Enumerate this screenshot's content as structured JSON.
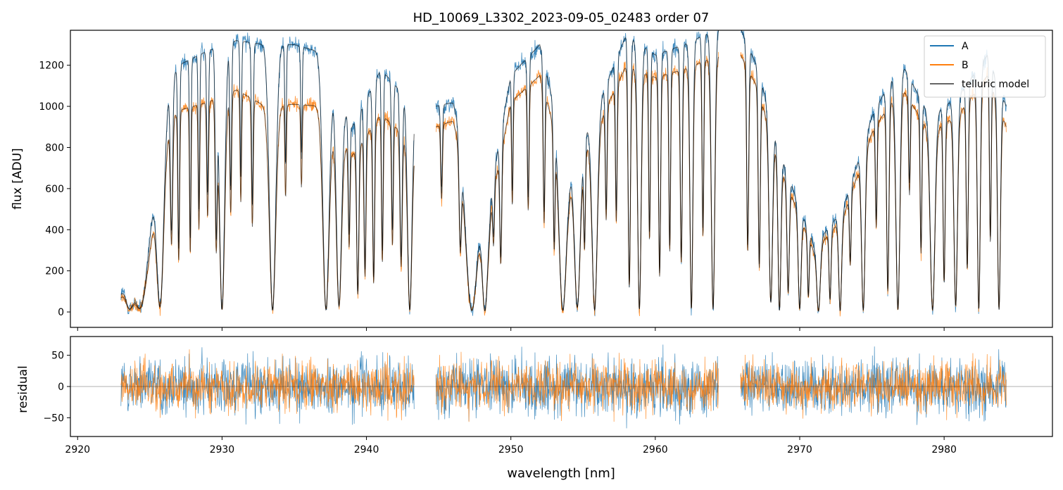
{
  "chart_data": [
    {
      "type": "line",
      "title": "HD_10069_L3302_2023-09-05_02483  order 07",
      "xlabel": "",
      "ylabel": "flux [ADU]",
      "xlim": [
        2919.5,
        2987.5
      ],
      "ylim": [
        -75,
        1370
      ],
      "yticks": [
        0,
        200,
        400,
        600,
        800,
        1000,
        1200
      ],
      "legend": {
        "position": "top-right",
        "entries": [
          "A",
          "B",
          "telluric model"
        ]
      },
      "series": [
        {
          "name": "A",
          "color": "#1f77b4"
        },
        {
          "name": "B",
          "color": "#ff7f0e"
        },
        {
          "name": "telluric model",
          "color": "#000000",
          "alpha": 0.6
        }
      ],
      "data_range": [
        2923.0,
        2984.3
      ],
      "gaps": [
        [
          2943.3,
          2944.8
        ],
        [
          2964.4,
          2965.9
        ]
      ],
      "continuum": {
        "x": [
          2923.0,
          2925.0,
          2926.0,
          2927.0,
          2929.0,
          2931.0,
          2933.0,
          2935.0,
          2937.0,
          2939.0,
          2941.0,
          2943.3,
          2944.8,
          2946.0,
          2947.0,
          2948.5,
          2950.0,
          2952.0,
          2954.0,
          2956.0,
          2958.0,
          2960.0,
          2962.0,
          2964.4,
          2965.9,
          2967.0,
          2969.0,
          2971.0,
          2973.0,
          2975.0,
          2977.0,
          2979.0,
          2981.0,
          2983.0,
          2984.3
        ],
        "A": [
          100,
          550,
          1050,
          1200,
          1270,
          1320,
          1300,
          1300,
          1260,
          900,
          1180,
          1000,
          1000,
          1020,
          800,
          550,
          1150,
          1300,
          700,
          1000,
          1350,
          1250,
          1300,
          1380,
          1380,
          1200,
          700,
          320,
          500,
          950,
          1220,
          950,
          1050,
          1250,
          1000
        ],
        "B": [
          80,
          450,
          880,
          980,
          1020,
          1080,
          1000,
          1010,
          1000,
          760,
          960,
          820,
          900,
          930,
          720,
          480,
          1020,
          1150,
          640,
          900,
          1200,
          1140,
          1180,
          1250,
          1250,
          1100,
          640,
          290,
          460,
          870,
          1100,
          870,
          960,
          1150,
          900
        ]
      },
      "absorption_lines": [
        [
          2923.6,
          0.9,
          0.3
        ],
        [
          2924.3,
          0.95,
          0.5
        ],
        [
          2925.7,
          0.97,
          0.25
        ],
        [
          2926.5,
          0.65,
          0.08
        ],
        [
          2927.0,
          0.75,
          0.06
        ],
        [
          2927.8,
          0.72,
          0.05
        ],
        [
          2928.4,
          0.6,
          0.05
        ],
        [
          2929.0,
          0.55,
          0.06
        ],
        [
          2929.6,
          0.7,
          0.07
        ],
        [
          2930.0,
          0.99,
          0.18
        ],
        [
          2930.6,
          0.55,
          0.06
        ],
        [
          2931.3,
          0.5,
          0.05
        ],
        [
          2932.1,
          0.6,
          0.06
        ],
        [
          2933.5,
          0.99,
          0.22
        ],
        [
          2934.4,
          0.45,
          0.05
        ],
        [
          2935.5,
          0.4,
          0.05
        ],
        [
          2937.2,
          0.99,
          0.22
        ],
        [
          2938.1,
          0.97,
          0.18
        ],
        [
          2938.8,
          0.6,
          0.06
        ],
        [
          2939.4,
          0.9,
          0.08
        ],
        [
          2939.9,
          0.8,
          0.07
        ],
        [
          2940.5,
          0.85,
          0.07
        ],
        [
          2941.1,
          0.75,
          0.06
        ],
        [
          2941.8,
          0.65,
          0.06
        ],
        [
          2942.4,
          0.75,
          0.08
        ],
        [
          2943.0,
          0.99,
          0.15
        ],
        [
          2945.2,
          0.4,
          0.06
        ],
        [
          2946.5,
          0.6,
          0.08
        ],
        [
          2947.3,
          0.99,
          0.4
        ],
        [
          2948.2,
          0.99,
          0.2
        ],
        [
          2948.8,
          0.45,
          0.06
        ],
        [
          2949.3,
          0.7,
          0.07
        ],
        [
          2950.1,
          0.5,
          0.05
        ],
        [
          2951.2,
          0.55,
          0.06
        ],
        [
          2952.3,
          0.6,
          0.06
        ],
        [
          2953.0,
          0.65,
          0.06
        ],
        [
          2953.6,
          0.99,
          0.25
        ],
        [
          2954.6,
          0.97,
          0.2
        ],
        [
          2955.1,
          0.6,
          0.06
        ],
        [
          2955.8,
          0.99,
          0.18
        ],
        [
          2956.6,
          0.55,
          0.06
        ],
        [
          2957.3,
          0.6,
          0.06
        ],
        [
          2958.2,
          0.9,
          0.08
        ],
        [
          2958.9,
          0.99,
          0.12
        ],
        [
          2959.6,
          0.7,
          0.06
        ],
        [
          2960.3,
          0.85,
          0.07
        ],
        [
          2961.0,
          0.75,
          0.06
        ],
        [
          2961.8,
          0.8,
          0.07
        ],
        [
          2962.5,
          0.99,
          0.1
        ],
        [
          2963.3,
          0.7,
          0.06
        ],
        [
          2964.0,
          0.99,
          0.12
        ],
        [
          2966.4,
          0.75,
          0.07
        ],
        [
          2967.2,
          0.8,
          0.07
        ],
        [
          2968.0,
          0.95,
          0.12
        ],
        [
          2968.6,
          0.99,
          0.1
        ],
        [
          2969.2,
          0.85,
          0.08
        ],
        [
          2970.0,
          0.97,
          0.1
        ],
        [
          2970.6,
          0.8,
          0.06
        ],
        [
          2971.3,
          0.99,
          0.12
        ],
        [
          2972.1,
          0.85,
          0.07
        ],
        [
          2972.8,
          0.99,
          0.1
        ],
        [
          2973.5,
          0.6,
          0.06
        ],
        [
          2974.4,
          0.99,
          0.12
        ],
        [
          2975.3,
          0.55,
          0.06
        ],
        [
          2976.1,
          0.9,
          0.08
        ],
        [
          2976.8,
          0.99,
          0.14
        ],
        [
          2977.6,
          0.45,
          0.06
        ],
        [
          2978.4,
          0.7,
          0.06
        ],
        [
          2979.2,
          0.99,
          0.16
        ],
        [
          2980.0,
          0.85,
          0.07
        ],
        [
          2980.8,
          0.97,
          0.12
        ],
        [
          2981.6,
          0.8,
          0.07
        ],
        [
          2982.4,
          0.99,
          0.1
        ],
        [
          2983.2,
          0.7,
          0.06
        ],
        [
          2983.8,
          0.99,
          0.1
        ]
      ],
      "noise": {
        "A": 20,
        "B": 16
      }
    },
    {
      "type": "line",
      "title": "",
      "xlabel": "wavelength [nm]",
      "ylabel": "residual",
      "xlim": [
        2919.5,
        2987.5
      ],
      "ylim": [
        -80,
        80
      ],
      "yticks": [
        -50,
        0,
        50
      ],
      "xticks": [
        2920,
        2930,
        2940,
        2950,
        2960,
        2970,
        2980
      ],
      "reference_line": 0,
      "series": [
        {
          "name": "A",
          "color": "#1f77b4",
          "noise_sigma": 20
        },
        {
          "name": "B",
          "color": "#ff7f0e",
          "noise_sigma": 16
        }
      ]
    }
  ]
}
